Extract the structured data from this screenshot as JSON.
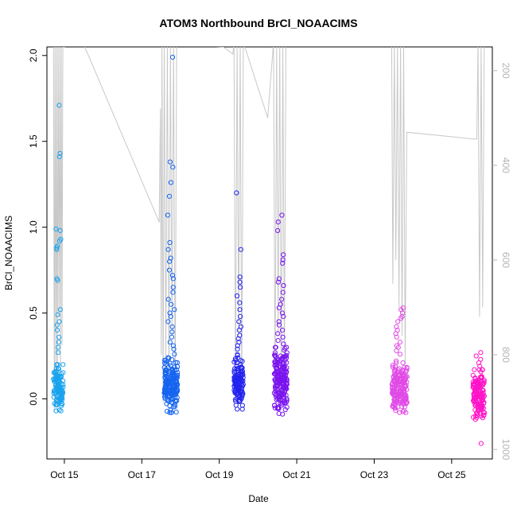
{
  "chart_data": {
    "type": "scatter",
    "title": "ATOM3 Northbound BrCl_NOAACIMS",
    "xlabel": "Date",
    "ylabel": "BrCl_NOAACIMS",
    "xlim": [
      14.55,
      26.05
    ],
    "ylim": [
      -0.35,
      2.05
    ],
    "y2lim": [
      1020,
      150
    ],
    "x_ticks": [
      {
        "value": 15,
        "label": "Oct 15"
      },
      {
        "value": 17,
        "label": "Oct 17"
      },
      {
        "value": 19,
        "label": "Oct 19"
      },
      {
        "value": 21,
        "label": "Oct 21"
      },
      {
        "value": 23,
        "label": "Oct 23"
      },
      {
        "value": 25,
        "label": "Oct 25"
      }
    ],
    "y_ticks": [
      {
        "value": 0,
        "label": "0.0"
      },
      {
        "value": 0.5,
        "label": "0.5"
      },
      {
        "value": 1.0,
        "label": "1.0"
      },
      {
        "value": 1.5,
        "label": "1.5"
      },
      {
        "value": 2.0,
        "label": "2.0"
      }
    ],
    "y2_ticks": [
      {
        "value": 200,
        "label": "200"
      },
      {
        "value": 400,
        "label": "400"
      },
      {
        "value": 600,
        "label": "600"
      },
      {
        "value": 800,
        "label": "800"
      },
      {
        "value": 1000,
        "label": "1000"
      }
    ],
    "grid": false,
    "legend": "none",
    "colors": {
      "pressure_line": "#c8c8c8",
      "right_axis": "#b4b4b4",
      "f15": "#1aa3ee",
      "f17": "#1464f0",
      "f19": "#2323f0",
      "f20": "#7a14ef",
      "f23": "#e04ae6",
      "f25": "#ff14c8"
    },
    "series": [
      {
        "color_key": "f15",
        "x_range": [
          14.72,
          14.97
        ],
        "count": 110,
        "core": [
          -0.07,
          0.2
        ],
        "outliers": [
          1.71,
          1.43,
          1.41,
          0.99,
          0.98,
          0.93,
          0.92,
          0.89,
          0.88,
          0.87,
          0.7,
          0.69,
          0.52,
          0.49,
          0.45,
          0.43,
          0.4,
          0.36,
          0.33,
          0.3,
          0.27
        ]
      },
      {
        "color_key": "f17",
        "x_range": [
          17.58,
          17.93
        ],
        "count": 170,
        "core": [
          -0.08,
          0.24
        ],
        "outliers": [
          1.99,
          1.38,
          1.35,
          1.26,
          1.18,
          1.07,
          0.91,
          0.87,
          0.82,
          0.8,
          0.75,
          0.72,
          0.7,
          0.65,
          0.62,
          0.58,
          0.55,
          0.52,
          0.5,
          0.48,
          0.45,
          0.42,
          0.39,
          0.36,
          0.33,
          0.31,
          0.29,
          0.26
        ]
      },
      {
        "color_key": "f19",
        "x_range": [
          19.38,
          19.62
        ],
        "count": 120,
        "core": [
          -0.06,
          0.26
        ],
        "outliers": [
          1.2,
          0.87,
          0.71,
          0.68,
          0.65,
          0.6,
          0.56,
          0.52,
          0.48,
          0.45,
          0.42,
          0.4,
          0.37,
          0.35,
          0.33,
          0.31,
          0.29
        ]
      },
      {
        "color_key": "f20",
        "x_range": [
          20.42,
          20.75
        ],
        "count": 190,
        "core": [
          -0.11,
          0.3
        ],
        "outliers": [
          1.07,
          1.03,
          0.98,
          0.84,
          0.81,
          0.79,
          0.7,
          0.68,
          0.66,
          0.62,
          0.58,
          0.55,
          0.53,
          0.5,
          0.48,
          0.45,
          0.43,
          0.4,
          0.38,
          0.36,
          0.34,
          0.32
        ]
      },
      {
        "color_key": "f23",
        "x_range": [
          23.45,
          23.85
        ],
        "count": 180,
        "core": [
          -0.08,
          0.22
        ],
        "outliers": [
          0.53,
          0.52,
          0.5,
          0.48,
          0.47,
          0.45,
          0.42,
          0.4,
          0.38,
          0.36,
          0.33,
          0.31,
          0.3,
          0.28,
          0.26
        ]
      },
      {
        "color_key": "f25",
        "x_range": [
          25.55,
          25.85
        ],
        "count": 150,
        "core": [
          -0.12,
          0.17
        ],
        "outliers": [
          0.27,
          0.25,
          0.23,
          0.21,
          0.19,
          -0.26
        ]
      }
    ],
    "pressure_track": [
      [
        14.72,
        140
      ],
      [
        14.74,
        920
      ],
      [
        14.76,
        150
      ],
      [
        14.78,
        870
      ],
      [
        14.8,
        140
      ],
      [
        14.82,
        910
      ],
      [
        14.84,
        150
      ],
      [
        14.86,
        720
      ],
      [
        14.88,
        145
      ],
      [
        14.9,
        850
      ],
      [
        14.92,
        140
      ],
      [
        14.94,
        780
      ],
      [
        14.96,
        150
      ],
      [
        15.5,
        145
      ],
      [
        17.45,
        520
      ],
      [
        17.48,
        280
      ],
      [
        17.5,
        800
      ],
      [
        17.52,
        140
      ],
      [
        17.55,
        900
      ],
      [
        17.58,
        145
      ],
      [
        17.62,
        820
      ],
      [
        17.66,
        140
      ],
      [
        17.7,
        880
      ],
      [
        17.74,
        150
      ],
      [
        17.78,
        760
      ],
      [
        17.82,
        140
      ],
      [
        17.86,
        900
      ],
      [
        17.9,
        145
      ],
      [
        19.1,
        150
      ],
      [
        19.35,
        165
      ],
      [
        19.38,
        140
      ],
      [
        19.42,
        880
      ],
      [
        19.46,
        150
      ],
      [
        19.5,
        760
      ],
      [
        19.54,
        140
      ],
      [
        19.58,
        900
      ],
      [
        19.62,
        140
      ],
      [
        20.25,
        300
      ],
      [
        20.4,
        140
      ],
      [
        20.44,
        880
      ],
      [
        20.48,
        150
      ],
      [
        20.52,
        760
      ],
      [
        20.56,
        140
      ],
      [
        20.6,
        900
      ],
      [
        20.64,
        150
      ],
      [
        20.68,
        820
      ],
      [
        20.72,
        140
      ],
      [
        23.45,
        140
      ],
      [
        23.48,
        650
      ],
      [
        23.52,
        145
      ],
      [
        23.56,
        600
      ],
      [
        23.6,
        150
      ],
      [
        23.64,
        700
      ],
      [
        23.68,
        140
      ],
      [
        23.72,
        760
      ],
      [
        23.76,
        150
      ],
      [
        23.8,
        820
      ],
      [
        23.84,
        330
      ],
      [
        25.65,
        345
      ],
      [
        25.68,
        140
      ],
      [
        25.72,
        720
      ],
      [
        25.76,
        150
      ],
      [
        25.8,
        700
      ],
      [
        25.84,
        140
      ]
    ]
  }
}
